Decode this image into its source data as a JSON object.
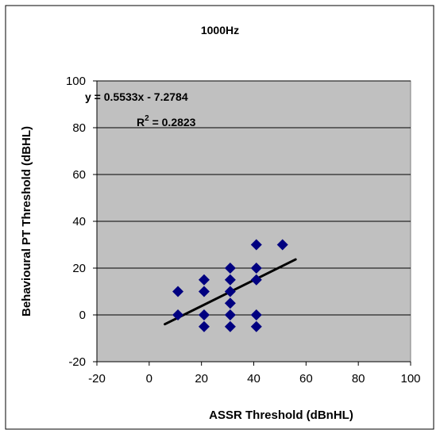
{
  "chart_data": {
    "type": "scatter",
    "title": "1000Hz",
    "xlabel": "ASSR Threshold (dBnHL)",
    "ylabel": "Behavioural PT Threshold (dBHL)",
    "xlim": [
      -20,
      100
    ],
    "ylim": [
      -20,
      100
    ],
    "xticks": [
      -20,
      0,
      20,
      40,
      60,
      80,
      100
    ],
    "yticks": [
      -20,
      0,
      20,
      40,
      60,
      80,
      100
    ],
    "xtick_labels": [
      "-20",
      "0",
      "20",
      "40",
      "60",
      "80",
      "100"
    ],
    "ytick_labels": [
      "-20",
      "0",
      "20",
      "40",
      "60",
      "80",
      "100"
    ],
    "grid": "horizontal",
    "plot_background": "#c0c0c0",
    "marker_color": "#000080",
    "trendline_color": "#000000",
    "points": [
      {
        "x": 11,
        "y": 10
      },
      {
        "x": 11,
        "y": 0
      },
      {
        "x": 21,
        "y": 15
      },
      {
        "x": 21,
        "y": 10
      },
      {
        "x": 21,
        "y": 0
      },
      {
        "x": 21,
        "y": -5
      },
      {
        "x": 31,
        "y": 20
      },
      {
        "x": 31,
        "y": 15
      },
      {
        "x": 31,
        "y": 10
      },
      {
        "x": 31,
        "y": 5
      },
      {
        "x": 31,
        "y": 0
      },
      {
        "x": 31,
        "y": -5
      },
      {
        "x": 41,
        "y": 30
      },
      {
        "x": 41,
        "y": 20
      },
      {
        "x": 41,
        "y": 15
      },
      {
        "x": 41,
        "y": 0
      },
      {
        "x": 41,
        "y": -5
      },
      {
        "x": 51,
        "y": 30
      }
    ],
    "trendline": {
      "slope": 0.5533,
      "intercept": -7.2784,
      "x_range": [
        6,
        56
      ],
      "equation_label": "y = 0.5533x - 7.2784",
      "r2_label_prefix": "R",
      "r2_label_sup": "2",
      "r2_label_value": " = 0.2823"
    }
  }
}
